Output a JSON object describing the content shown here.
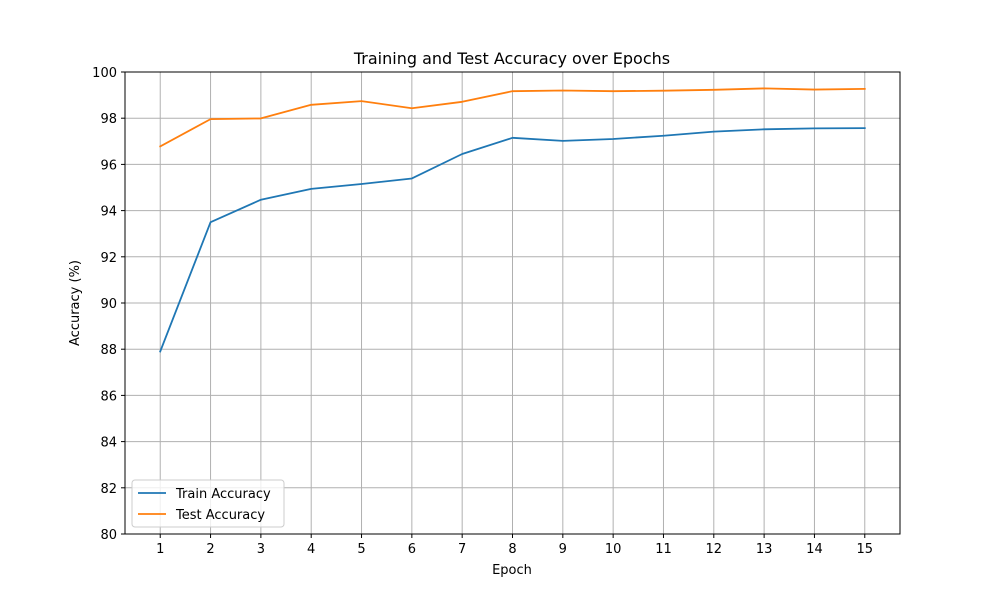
{
  "chart_data": {
    "type": "line",
    "title": "Training and Test Accuracy over Epochs",
    "xlabel": "Epoch",
    "ylabel": "Accuracy (%)",
    "x": [
      1,
      2,
      3,
      4,
      5,
      6,
      7,
      8,
      9,
      10,
      11,
      12,
      13,
      14,
      15
    ],
    "xlim": [
      0.3,
      15.7
    ],
    "ylim": [
      80,
      100
    ],
    "yticks": [
      80,
      82,
      84,
      86,
      88,
      90,
      92,
      94,
      96,
      98,
      100
    ],
    "grid": true,
    "legend_position": "lower-left",
    "series": [
      {
        "name": "Train Accuracy",
        "color": "#1f77b4",
        "values": [
          87.9,
          93.5,
          94.47,
          94.94,
          95.15,
          95.39,
          96.45,
          97.15,
          97.02,
          97.1,
          97.24,
          97.42,
          97.52,
          97.56,
          97.57
        ]
      },
      {
        "name": "Test Accuracy",
        "color": "#ff7f0e",
        "values": [
          96.78,
          97.96,
          97.99,
          98.58,
          98.74,
          98.43,
          98.71,
          99.17,
          99.2,
          99.17,
          99.19,
          99.23,
          99.29,
          99.24,
          99.27
        ]
      }
    ]
  }
}
